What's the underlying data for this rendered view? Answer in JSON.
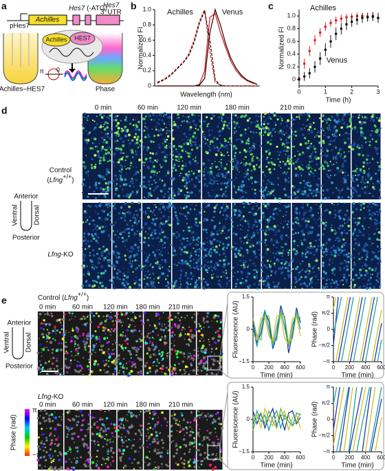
{
  "panel_a": {
    "label": "a",
    "promoter": "pHes7",
    "reporter": "Achilles",
    "gene": "Hes7",
    "atg": "(-ATG)",
    "utr_gene": "Hes7",
    "utr": "3′ UTR",
    "fusion_left": "Achilles",
    "fusion_right": "HES7",
    "embryo_left": "Achilles–HES7",
    "embryo_right": "Phase",
    "phase_pi": "π",
    "phase_zero": "0"
  },
  "panel_b": {
    "label": "b"
  },
  "panel_c": {
    "label": "c"
  },
  "panel_d": {
    "label": "d",
    "times": [
      "0 min",
      "60 min",
      "120 min",
      "180 min",
      "210 min"
    ],
    "control": "Control",
    "genotype": [
      "(",
      "Lfng",
      "+/+",
      ")"
    ],
    "axes": {
      "anterior": "Anterior",
      "ventral": "Ventral",
      "dorsal": "Dorsal",
      "posterior": "Posterior"
    },
    "ko": [
      "Lfng",
      "-KO"
    ]
  },
  "panel_e": {
    "label": "e",
    "control": "Control",
    "genotype": [
      "(",
      "Lfng",
      "+/+",
      ")"
    ],
    "times_control": [
      "0 min",
      "60 min",
      "120 min",
      "180 min",
      "210 min"
    ],
    "axes": {
      "anterior": "Anterior",
      "ventral": "Ventral",
      "dorsal": "Dorsal",
      "posterior": "Posterior"
    },
    "ko": [
      "Lfng",
      "-KO"
    ],
    "times_ko": [
      "0 min",
      "60 min",
      "120 min",
      "180 min",
      "210 min"
    ],
    "colorbar": {
      "title": "Phase (rad)",
      "max": "π",
      "min": "−π"
    }
  },
  "chart_data": [
    {
      "type": "line",
      "ylabel": "Normalized FI",
      "xlabel": "Wavelength (nm)",
      "x": [
        420,
        430,
        440,
        450,
        460,
        470,
        480,
        490,
        500,
        510,
        520,
        530,
        540,
        550,
        560,
        570,
        580,
        590,
        600,
        610
      ],
      "xlim": [
        415,
        615
      ],
      "ylim": [
        0,
        1
      ],
      "yticks": [
        0,
        0.2,
        0.4,
        0.6,
        0.8,
        {
          "value": 1,
          "label": "1.0"
        }
      ],
      "series": [
        {
          "name": "Achilles",
          "color": "#d42020",
          "dash": true,
          "values": [
            0.05,
            0.08,
            0.12,
            0.18,
            0.25,
            0.32,
            0.42,
            0.6,
            0.85,
            1.0,
            0.45,
            0.05,
            0.01,
            0,
            0,
            0,
            0,
            0,
            0,
            0
          ]
        },
        {
          "color": "#d42020",
          "dash": false,
          "values": [
            0,
            0,
            0,
            0,
            0,
            0,
            0,
            0,
            0.02,
            0.2,
            0.9,
            0.95,
            0.7,
            0.5,
            0.32,
            0.2,
            0.12,
            0.07,
            0.04,
            0.02
          ]
        },
        {
          "color": "#3a0a0a",
          "dash": true,
          "values": [
            0.04,
            0.07,
            0.11,
            0.17,
            0.24,
            0.31,
            0.4,
            0.57,
            0.82,
            0.98,
            0.6,
            0.08,
            0.01,
            0,
            0,
            0,
            0,
            0,
            0,
            0
          ]
        },
        {
          "name": "Venus",
          "color": "#3a0a0a",
          "dash": false,
          "values": [
            0,
            0,
            0,
            0,
            0,
            0,
            0,
            0,
            0.01,
            0.1,
            0.7,
            1.0,
            0.8,
            0.55,
            0.36,
            0.23,
            0.14,
            0.08,
            0.05,
            0.02
          ]
        }
      ]
    },
    {
      "type": "errorbar",
      "ylabel": "Normalized FI",
      "xlabel": "Time (h)",
      "x": [
        0,
        0.2,
        0.4,
        0.6,
        0.8,
        1,
        1.2,
        1.4,
        1.6,
        1.8,
        2,
        2.2,
        2.4,
        2.6,
        2.8,
        3
      ],
      "xlim": [
        0,
        3
      ],
      "xticks": [
        0,
        1,
        2,
        3
      ],
      "ylim": [
        -0.1,
        1.1
      ],
      "yticks": [
        0,
        0.2,
        0.4,
        0.6,
        0.8,
        {
          "value": 1,
          "label": "1.0"
        }
      ],
      "series": [
        {
          "name": "Achilles",
          "color": "#e02020",
          "values": [
            0.02,
            0.25,
            0.45,
            0.62,
            0.74,
            0.83,
            0.89,
            0.93,
            0.96,
            0.98,
            0.99,
            1.0,
            1.0,
            0.99,
            1.0,
            0.97
          ],
          "errors": [
            0.05,
            0.08,
            0.08,
            0.08,
            0.07,
            0.07,
            0.06,
            0.06,
            0.06,
            0.05,
            0.05,
            0.05,
            0.05,
            0.06,
            0.06,
            0.07
          ]
        },
        {
          "name": "Venus",
          "color": "#111111",
          "values": [
            0.0,
            0.05,
            0.1,
            0.2,
            0.33,
            0.47,
            0.6,
            0.72,
            0.8,
            0.87,
            0.91,
            0.94,
            0.97,
            0.98,
            0.99,
            0.97
          ],
          "errors": [
            0.06,
            0.07,
            0.08,
            0.09,
            0.1,
            0.1,
            0.1,
            0.1,
            0.09,
            0.09,
            0.08,
            0.08,
            0.08,
            0.07,
            0.07,
            0.08
          ]
        }
      ]
    },
    {
      "type": "line",
      "ylabel": "Fluorescence (AU)",
      "xlabel": "Time (min)",
      "x": [
        0,
        50,
        100,
        150,
        200,
        250,
        300,
        350,
        400,
        450,
        500,
        550,
        600
      ],
      "xlim": [
        0,
        600
      ],
      "xticks": [
        0,
        200,
        400,
        600
      ],
      "ylim": [
        -1.5,
        1.5
      ],
      "yticks": [
        {
          "value": -1.5,
          "label": "−1.5"
        },
        0,
        1.5
      ],
      "series": [
        {
          "color": "#2233aa",
          "values": [
            0.3,
            -0.6,
            -0.2,
            0.8,
            0.4,
            -0.9,
            -0.3,
            1.1,
            0.5,
            -1.1,
            -0.2,
            1.0,
            0.3
          ]
        },
        {
          "color": "#1aa3a3",
          "values": [
            0.1,
            -0.8,
            0.2,
            0.9,
            0.0,
            -0.8,
            0.1,
            0.9,
            0.1,
            -0.8,
            0.2,
            0.8,
            0.0
          ]
        },
        {
          "color": "#c9c227",
          "values": [
            -0.2,
            -0.5,
            0.5,
            0.6,
            -0.3,
            -0.6,
            0.6,
            0.7,
            -0.4,
            -0.7,
            0.5,
            0.6,
            -0.3
          ]
        },
        {
          "color": "#6fb83a",
          "values": [
            0.5,
            -0.3,
            -0.5,
            0.7,
            0.6,
            -0.6,
            -0.5,
            0.8,
            0.6,
            -0.7,
            -0.4,
            0.8,
            0.5
          ]
        }
      ]
    },
    {
      "type": "line",
      "ylabel": "Phase (rad)",
      "xlabel": "Time (min)",
      "xlim": [
        0,
        600
      ],
      "xticks": [
        0,
        200,
        400,
        600
      ],
      "ylim": [
        -3.14159,
        3.14159
      ],
      "yticks": [
        {
          "value": -3.14159,
          "label": "−π"
        },
        {
          "value": -1.5708,
          "label": "−π/2"
        },
        0,
        {
          "value": 1.5708,
          "label": "π/2"
        },
        {
          "value": 3.14159,
          "label": "π"
        }
      ],
      "series": [
        {
          "color": "#2233aa",
          "x": [
            0,
            60,
            60,
            60,
            210,
            210,
            210,
            360,
            360,
            360,
            510,
            510,
            510,
            600
          ],
          "values": [
            -1.5,
            3.14,
            null,
            -3.14,
            3.14,
            null,
            -3.14,
            3.14,
            null,
            -3.14,
            3.14,
            null,
            -3.14,
            0.6
          ]
        },
        {
          "color": "#1aa3a3",
          "x": [
            0,
            100,
            100,
            100,
            250,
            250,
            250,
            400,
            400,
            400,
            550,
            550,
            550,
            600
          ],
          "values": [
            -0.5,
            3.14,
            null,
            -3.14,
            3.14,
            null,
            -3.14,
            3.14,
            null,
            -3.14,
            3.14,
            null,
            -3.14,
            -1.0
          ]
        },
        {
          "color": "#c9c227",
          "x": [
            0,
            30,
            30,
            30,
            180,
            180,
            180,
            330,
            330,
            330,
            480,
            480,
            480,
            600
          ],
          "values": [
            2.0,
            3.14,
            null,
            -3.14,
            3.14,
            null,
            -3.14,
            3.14,
            null,
            -3.14,
            3.14,
            null,
            -3.14,
            1.9
          ]
        }
      ]
    },
    {
      "type": "line",
      "ylabel": "Fluorescence (AU)",
      "xlabel": "Time (min)",
      "x": [
        0,
        50,
        100,
        150,
        200,
        250,
        300,
        350,
        400,
        450,
        500,
        550,
        600
      ],
      "xlim": [
        0,
        600
      ],
      "xticks": [
        0,
        200,
        400,
        600
      ],
      "ylim": [
        -1.5,
        1.5
      ],
      "yticks": [
        {
          "value": -1.5,
          "label": "−1.5"
        },
        0,
        1.5
      ],
      "series": [
        {
          "color": "#2233aa",
          "values": [
            0.4,
            -0.2,
            0.3,
            -0.4,
            0.1,
            0.5,
            -0.3,
            0.2,
            -0.5,
            0.3,
            0.4,
            -0.2,
            0.1
          ]
        },
        {
          "color": "#1aa3a3",
          "values": [
            -0.3,
            0.4,
            -0.1,
            0.2,
            -0.5,
            0.1,
            0.4,
            -0.4,
            0.2,
            -0.1,
            -0.3,
            0.3,
            0.2
          ]
        },
        {
          "color": "#c9c227",
          "values": [
            0.1,
            0.2,
            -0.4,
            0.5,
            0.0,
            -0.3,
            0.2,
            0.1,
            0.4,
            -0.5,
            0.1,
            0.2,
            -0.4
          ]
        },
        {
          "color": "#6fb83a",
          "values": [
            -0.5,
            0.1,
            0.3,
            -0.2,
            0.4,
            -0.1,
            -0.4,
            0.5,
            0.0,
            0.2,
            -0.3,
            -0.1,
            0.3
          ]
        }
      ]
    },
    {
      "type": "line",
      "ylabel": "Phase (rad)",
      "xlabel": "Time (min)",
      "xlim": [
        0,
        600
      ],
      "xticks": [
        0,
        200,
        400,
        600
      ],
      "ylim": [
        -3.14159,
        3.14159
      ],
      "yticks": [
        {
          "value": -3.14159,
          "label": "−π"
        },
        {
          "value": -1.5708,
          "label": "−π/2"
        },
        0,
        {
          "value": 1.5708,
          "label": "π/2"
        },
        {
          "value": 3.14159,
          "label": "π"
        }
      ],
      "series": [
        {
          "color": "#2233aa",
          "x": [
            0,
            80,
            80,
            80,
            200,
            200,
            200,
            360,
            360,
            360,
            470,
            470,
            470,
            600
          ],
          "values": [
            -1.0,
            3.14,
            null,
            -3.14,
            3.14,
            null,
            -3.14,
            3.14,
            null,
            -3.14,
            3.14,
            null,
            -3.14,
            2.0
          ]
        },
        {
          "color": "#1aa3a3",
          "x": [
            0,
            40,
            40,
            40,
            190,
            190,
            190,
            290,
            290,
            290,
            450,
            450,
            450,
            600
          ],
          "values": [
            1.5,
            3.14,
            null,
            -3.14,
            3.14,
            null,
            -3.14,
            3.14,
            null,
            -3.14,
            3.14,
            null,
            -3.14,
            3.14
          ]
        },
        {
          "color": "#c9c227",
          "x": [
            0,
            130,
            130,
            130,
            240,
            240,
            240,
            400,
            400,
            400,
            520,
            520,
            520,
            600
          ],
          "values": [
            -2.5,
            3.14,
            null,
            -3.14,
            3.14,
            null,
            -3.14,
            3.14,
            null,
            -3.14,
            3.14,
            null,
            -3.14,
            0.2
          ]
        }
      ]
    }
  ]
}
